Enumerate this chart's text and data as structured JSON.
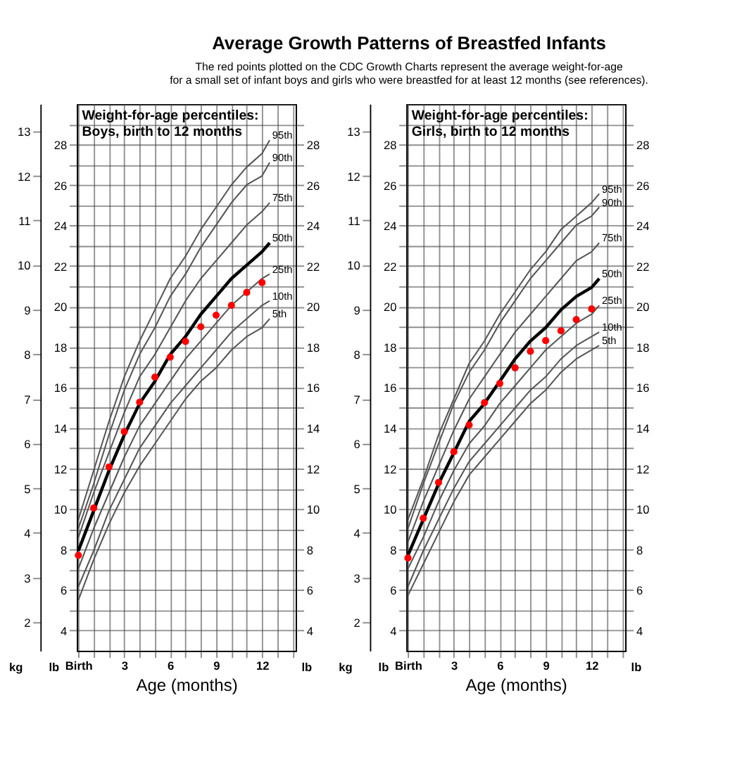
{
  "chart_data": [
    {
      "type": "other",
      "title": "Average Growth Patterns of Breastfed Infants",
      "subtitle": "The red points plotted on the CDC Growth Charts represent the average weight-for-age\nfor a small set of infant boys and girls who were breastfed for at least 12 months (see references)."
    },
    {
      "type": "line",
      "title": "Weight-for-age percentiles:\nBoys, birth to 12 months",
      "xlabel": "Age (months)",
      "ylabel": "kg",
      "y2label": "lb",
      "y3label": "lb",
      "x": [
        0,
        1,
        2,
        3,
        4,
        5,
        6,
        7,
        8,
        9,
        10,
        11,
        12,
        12.5
      ],
      "xlim": [
        -0.1,
        14.2
      ],
      "xticks": [
        {
          "value": 0,
          "label": "Birth"
        },
        {
          "value": 1,
          "label": null
        },
        {
          "value": 2,
          "label": null
        },
        3,
        {
          "value": 4,
          "label": null
        },
        {
          "value": 5,
          "label": null
        },
        6,
        {
          "value": 7,
          "label": null
        },
        {
          "value": 8,
          "label": null
        },
        9,
        {
          "value": 10,
          "label": null
        },
        {
          "value": 11,
          "label": null
        },
        12,
        {
          "value": 13,
          "label": null
        },
        {
          "value": 14,
          "label": null
        }
      ],
      "ylim": [
        1.36,
        13.61
      ],
      "yticks": [
        2,
        3,
        4,
        5,
        6,
        7,
        8,
        9,
        10,
        11,
        12,
        13
      ],
      "y2lim": [
        3,
        30
      ],
      "y2ticks": [
        4,
        {
          "value": 5,
          "label": null
        },
        6,
        {
          "value": 7,
          "label": null
        },
        8,
        {
          "value": 9,
          "label": null
        },
        10,
        {
          "value": 11,
          "label": null
        },
        12,
        {
          "value": 13,
          "label": null
        },
        14,
        {
          "value": 15,
          "label": null
        },
        16,
        {
          "value": 17,
          "label": null
        },
        18,
        {
          "value": 19,
          "label": null
        },
        20,
        {
          "value": 21,
          "label": null
        },
        22,
        {
          "value": 23,
          "label": null
        },
        24,
        {
          "value": 25,
          "label": null
        },
        26,
        {
          "value": 27,
          "label": null
        },
        28,
        {
          "value": 29,
          "label": null
        }
      ],
      "y3lim": [
        3,
        30
      ],
      "y3ticks": [
        4,
        {
          "value": 5,
          "label": null
        },
        6,
        {
          "value": 7,
          "label": null
        },
        8,
        {
          "value": 9,
          "label": null
        },
        10,
        {
          "value": 11,
          "label": null
        },
        12,
        {
          "value": 13,
          "label": null
        },
        14,
        {
          "value": 15,
          "label": null
        },
        16,
        {
          "value": 17,
          "label": null
        },
        18,
        {
          "value": 19,
          "label": null
        },
        20,
        {
          "value": 21,
          "label": null
        },
        22,
        {
          "value": 23,
          "label": null
        },
        24,
        {
          "value": 25,
          "label": null
        },
        26,
        {
          "value": 27,
          "label": null
        },
        28,
        {
          "value": 29,
          "label": null
        }
      ],
      "grid": true,
      "series": [
        {
          "name": "95th",
          "color": "#555555",
          "values": [
            4.3,
            5.4,
            6.5,
            7.5,
            8.3,
            9.0,
            9.7,
            10.2,
            10.8,
            11.3,
            11.8,
            12.2,
            12.5,
            12.8
          ]
        },
        {
          "name": "90th",
          "color": "#555555",
          "values": [
            4.1,
            5.1,
            6.2,
            7.2,
            8.0,
            8.6,
            9.3,
            9.8,
            10.4,
            10.9,
            11.4,
            11.8,
            12.0,
            12.3
          ]
        },
        {
          "name": "75th",
          "color": "#555555",
          "values": [
            3.9,
            4.9,
            5.8,
            6.7,
            7.5,
            8.0,
            8.6,
            9.2,
            9.7,
            10.1,
            10.5,
            10.9,
            11.2,
            11.4
          ]
        },
        {
          "name": "50th",
          "color": "#000000",
          "values": [
            3.6,
            4.5,
            5.4,
            6.2,
            6.9,
            7.4,
            8.0,
            8.4,
            8.9,
            9.3,
            9.7,
            10.0,
            10.3,
            10.5
          ]
        },
        {
          "name": "25th",
          "color": "#555555",
          "values": [
            3.2,
            4.1,
            4.9,
            5.7,
            6.4,
            6.9,
            7.4,
            7.9,
            8.3,
            8.7,
            9.1,
            9.4,
            9.7,
            9.8
          ]
        },
        {
          "name": "10th",
          "color": "#555555",
          "values": [
            2.8,
            3.6,
            4.5,
            5.2,
            5.9,
            6.4,
            6.9,
            7.3,
            7.7,
            8.1,
            8.5,
            8.8,
            9.1,
            9.2
          ]
        },
        {
          "name": "5th",
          "color": "#555555",
          "values": [
            2.5,
            3.4,
            4.2,
            4.9,
            5.5,
            6.0,
            6.5,
            7.0,
            7.4,
            7.7,
            8.1,
            8.4,
            8.6,
            8.8
          ]
        },
        {
          "type": "scatter",
          "marker": "circle",
          "color": "#ff0000",
          "x": [
            0,
            1,
            2,
            3,
            4,
            5,
            6,
            7,
            8,
            9,
            10,
            11,
            12
          ],
          "values": [
            3.5,
            4.56,
            5.48,
            6.27,
            6.93,
            7.49,
            7.94,
            8.29,
            8.62,
            8.88,
            9.1,
            9.39,
            9.61
          ]
        }
      ]
    },
    {
      "type": "line",
      "title": "Weight-for-age percentiles:\nGirls, birth to 12 months",
      "xlabel": "Age (months)",
      "ylabel": "kg",
      "y2label": "lb",
      "y3label": "lb",
      "x": [
        0,
        1,
        2,
        3,
        4,
        5,
        6,
        7,
        8,
        9,
        10,
        11,
        12,
        12.5
      ],
      "xlim": [
        -0.1,
        14.2
      ],
      "xticks": [
        {
          "value": 0,
          "label": "Birth"
        },
        {
          "value": 1,
          "label": null
        },
        {
          "value": 2,
          "label": null
        },
        3,
        {
          "value": 4,
          "label": null
        },
        {
          "value": 5,
          "label": null
        },
        6,
        {
          "value": 7,
          "label": null
        },
        {
          "value": 8,
          "label": null
        },
        9,
        {
          "value": 10,
          "label": null
        },
        {
          "value": 11,
          "label": null
        },
        12,
        {
          "value": 13,
          "label": null
        },
        {
          "value": 14,
          "label": null
        }
      ],
      "ylim": [
        1.36,
        13.61
      ],
      "yticks": [
        2,
        3,
        4,
        5,
        6,
        7,
        8,
        9,
        10,
        11,
        12,
        13
      ],
      "y2lim": [
        3,
        30
      ],
      "y2ticks": [
        4,
        {
          "value": 5,
          "label": null
        },
        6,
        {
          "value": 7,
          "label": null
        },
        8,
        {
          "value": 9,
          "label": null
        },
        10,
        {
          "value": 11,
          "label": null
        },
        12,
        {
          "value": 13,
          "label": null
        },
        14,
        {
          "value": 15,
          "label": null
        },
        16,
        {
          "value": 17,
          "label": null
        },
        18,
        {
          "value": 19,
          "label": null
        },
        20,
        {
          "value": 21,
          "label": null
        },
        22,
        {
          "value": 23,
          "label": null
        },
        24,
        {
          "value": 25,
          "label": null
        },
        26,
        {
          "value": 27,
          "label": null
        },
        28,
        {
          "value": 29,
          "label": null
        }
      ],
      "y3lim": [
        3,
        30
      ],
      "y3ticks": [
        4,
        {
          "value": 5,
          "label": null
        },
        6,
        {
          "value": 7,
          "label": null
        },
        8,
        {
          "value": 9,
          "label": null
        },
        10,
        {
          "value": 11,
          "label": null
        },
        12,
        {
          "value": 13,
          "label": null
        },
        14,
        {
          "value": 15,
          "label": null
        },
        16,
        {
          "value": 17,
          "label": null
        },
        18,
        {
          "value": 19,
          "label": null
        },
        20,
        {
          "value": 21,
          "label": null
        },
        22,
        {
          "value": 23,
          "label": null
        },
        24,
        {
          "value": 25,
          "label": null
        },
        26,
        {
          "value": 27,
          "label": null
        },
        28,
        {
          "value": 29,
          "label": null
        }
      ],
      "grid": true,
      "series": [
        {
          "name": "95th",
          "color": "#555555",
          "values": [
            4.3,
            5.2,
            6.2,
            7.0,
            7.8,
            8.3,
            8.9,
            9.4,
            9.9,
            10.3,
            10.8,
            11.1,
            11.4,
            11.6
          ]
        },
        {
          "name": "90th",
          "color": "#555555",
          "values": [
            4.1,
            5.1,
            6.0,
            6.9,
            7.6,
            8.1,
            8.7,
            9.2,
            9.7,
            10.1,
            10.5,
            10.9,
            11.1,
            11.3
          ]
        },
        {
          "name": "75th",
          "color": "#555555",
          "values": [
            3.8,
            4.7,
            5.5,
            6.3,
            7.0,
            7.5,
            8.0,
            8.5,
            8.9,
            9.3,
            9.7,
            10.1,
            10.3,
            10.5
          ]
        },
        {
          "name": "50th",
          "color": "#000000",
          "values": [
            3.5,
            4.3,
            5.1,
            5.8,
            6.5,
            6.9,
            7.4,
            7.9,
            8.3,
            8.6,
            9.0,
            9.3,
            9.5,
            9.7
          ]
        },
        {
          "name": "25th",
          "color": "#555555",
          "values": [
            3.2,
            3.9,
            4.7,
            5.4,
            6.0,
            6.4,
            6.9,
            7.3,
            7.7,
            8.1,
            8.4,
            8.7,
            8.9,
            9.1
          ]
        },
        {
          "name": "10th",
          "color": "#555555",
          "values": [
            2.8,
            3.6,
            4.3,
            5.0,
            5.6,
            6.0,
            6.4,
            6.8,
            7.2,
            7.5,
            7.9,
            8.2,
            8.4,
            8.5
          ]
        },
        {
          "name": "5th",
          "color": "#555555",
          "values": [
            2.6,
            3.3,
            4.0,
            4.7,
            5.3,
            5.7,
            6.1,
            6.5,
            6.9,
            7.2,
            7.6,
            7.9,
            8.1,
            8.2
          ]
        },
        {
          "type": "scatter",
          "marker": "circle",
          "color": "#ff0000",
          "x": [
            0,
            1,
            2,
            3,
            4,
            5,
            6,
            7,
            8,
            9,
            10,
            11,
            12
          ],
          "values": [
            3.44,
            4.33,
            5.13,
            5.82,
            6.42,
            6.92,
            7.35,
            7.7,
            8.07,
            8.31,
            8.53,
            8.78,
            9.02
          ]
        }
      ]
    }
  ]
}
